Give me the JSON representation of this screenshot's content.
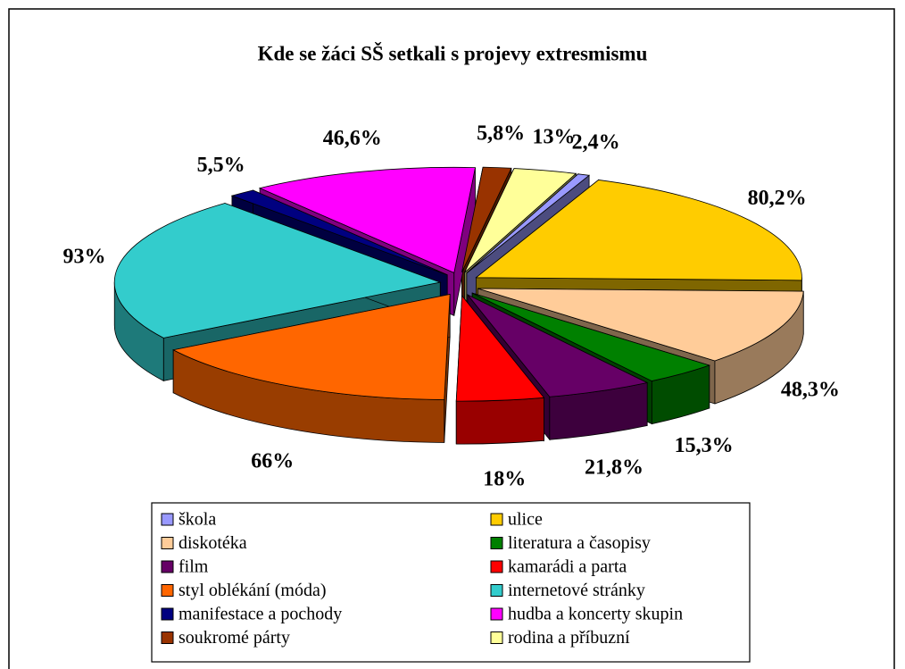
{
  "chart_data": {
    "type": "pie3d",
    "title": "Kde se žáci SŠ setkali s projevy extresmismu",
    "categories": [
      "škola",
      "ulice",
      "diskotéka",
      "literatura a časopisy",
      "film",
      "kamarádi a parta",
      "styl oblékání (móda)",
      "internetové stránky",
      "manifestace a pochody",
      "hudba a koncerty skupin",
      "soukromé párty",
      "rodina a příbuzní"
    ],
    "values": [
      2.4,
      80.2,
      48.3,
      15.3,
      21.8,
      18,
      66,
      93,
      5.5,
      46.6,
      5.8,
      13
    ],
    "value_labels": [
      "2,4%",
      "80,2%",
      "48,3%",
      "15,3%",
      "21,8%",
      "18%",
      "66%",
      "93%",
      "5,5%",
      "46,6%",
      "5,8%",
      "13%"
    ],
    "colors": [
      "#9999ff",
      "#ffcc00",
      "#ffcc99",
      "#008000",
      "#660066",
      "#ff0000",
      "#ff6600",
      "#33cccc",
      "#000080",
      "#ff00ff",
      "#993300",
      "#ffff99"
    ],
    "legend": "bottom"
  }
}
